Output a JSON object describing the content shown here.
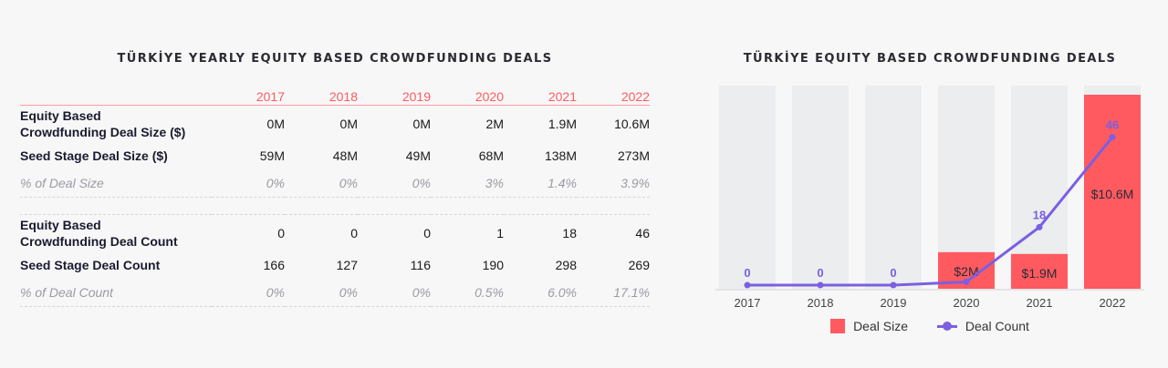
{
  "table_panel": {
    "title": "TÜRKİYE YEARLY EQUITY BASED CROWDFUNDING DEALS",
    "years": [
      "2017",
      "2018",
      "2019",
      "2020",
      "2021",
      "2022"
    ],
    "rows": {
      "ecf_size": {
        "label_line1": "Equity Based",
        "label_line2": "Crowdfunding Deal Size ($)",
        "values": [
          "0M",
          "0M",
          "0M",
          "2M",
          "1.9M",
          "10.6M"
        ]
      },
      "seed_size": {
        "label": "Seed Stage Deal Size ($)",
        "values": [
          "59M",
          "48M",
          "49M",
          "68M",
          "138M",
          "273M"
        ]
      },
      "pct_size": {
        "label": "% of Deal Size",
        "values": [
          "0%",
          "0%",
          "0%",
          "3%",
          "1.4%",
          "3.9%"
        ]
      },
      "ecf_count": {
        "label_line1": "Equity Based",
        "label_line2": "Crowdfunding Deal Count",
        "values": [
          "0",
          "0",
          "0",
          "1",
          "18",
          "46"
        ]
      },
      "seed_count": {
        "label": "Seed Stage Deal Count",
        "values": [
          "166",
          "127",
          "116",
          "190",
          "298",
          "269"
        ]
      },
      "pct_count": {
        "label": "% of Deal Count",
        "values": [
          "0%",
          "0%",
          "0%",
          "0.5%",
          "6.0%",
          "17.1%"
        ]
      }
    }
  },
  "colors": {
    "deal_size": "#ff5a60",
    "deal_count": "#7b5fe0",
    "bar_background": "#ebedef"
  },
  "chart_data": {
    "type": "bar",
    "title": "TÜRKİYE EQUITY BASED CROWDFUNDING DEALS",
    "categories": [
      "2017",
      "2018",
      "2019",
      "2020",
      "2021",
      "2022"
    ],
    "series": [
      {
        "name": "Deal Size",
        "type": "bar",
        "values": [
          0,
          0,
          0,
          2,
          1.9,
          10.6
        ],
        "labels": [
          "",
          "",
          "",
          "$2M",
          "$1.9M",
          "$10.6M"
        ]
      },
      {
        "name": "Deal Count",
        "type": "line",
        "values": [
          0,
          0,
          0,
          1,
          18,
          46
        ],
        "labels": [
          "0",
          "0",
          "0",
          "",
          "18",
          "46"
        ]
      }
    ],
    "y_size_max": 10.6,
    "y_count_max": 62,
    "legend_position": "bottom",
    "grid": false
  }
}
